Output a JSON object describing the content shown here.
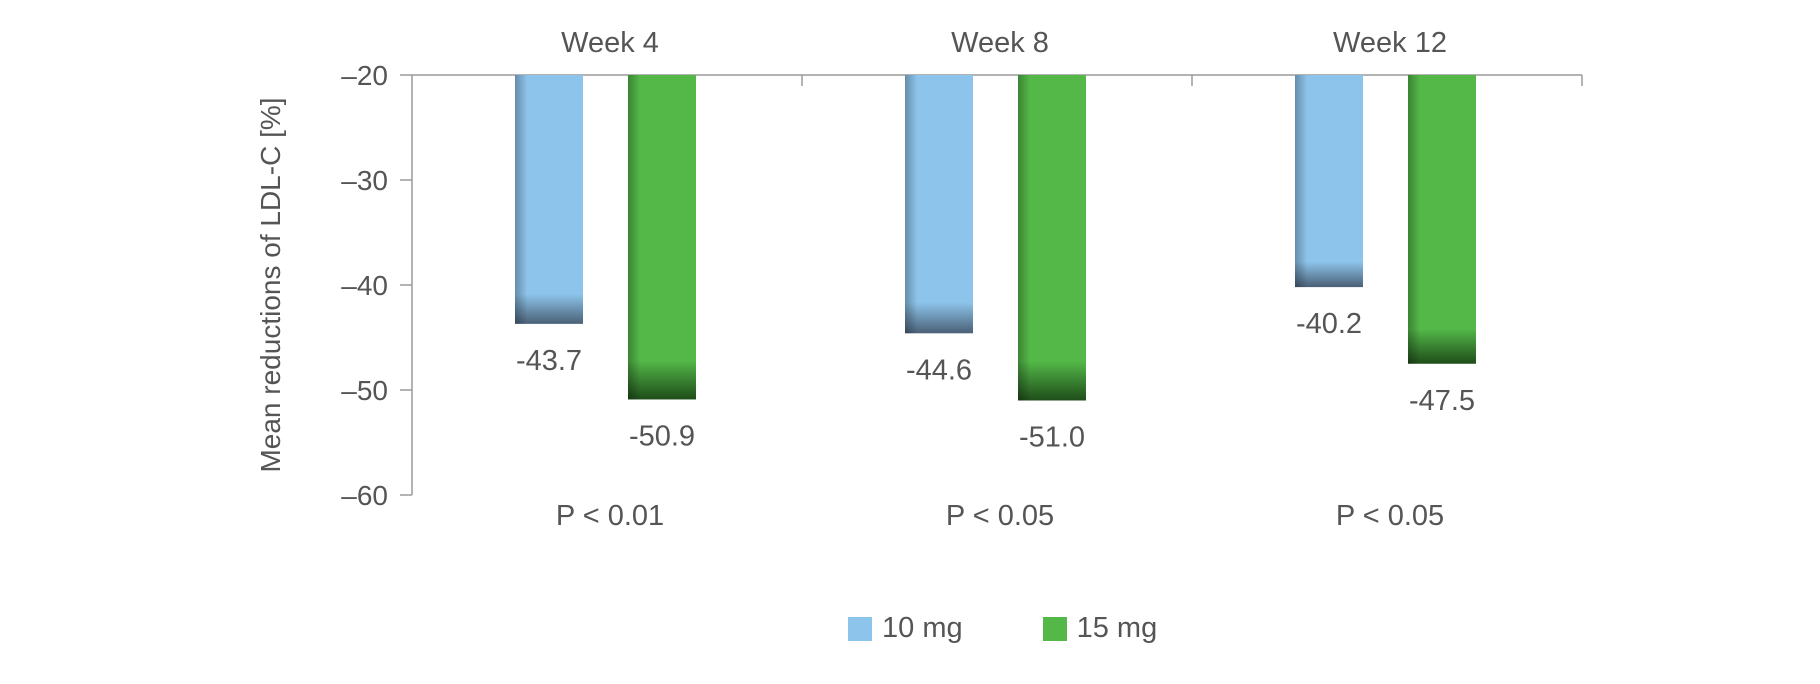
{
  "chart_data": {
    "type": "bar",
    "categories": [
      "Week 4",
      "Week 8",
      "Week 12"
    ],
    "series": [
      {
        "name": "10 mg",
        "values": [
          -43.7,
          -44.6,
          -40.2
        ],
        "labels": [
          "-43.7",
          "-44.6",
          "-40.2"
        ],
        "color": "#8dc4eb"
      },
      {
        "name": "15 mg",
        "values": [
          -50.9,
          -51.0,
          -47.5
        ],
        "labels": [
          "-50.9",
          "-51.0",
          "-47.5"
        ],
        "color": "#53b848"
      }
    ],
    "p_values": [
      "P < 0.01",
      "P < 0.05",
      "P < 0.05"
    ],
    "ylabel": "Mean reductions of LDL-C [%]",
    "ylim": [
      -60,
      -20
    ],
    "yticks": [
      -20,
      -30,
      -40,
      -50,
      -60
    ],
    "ytick_labels": [
      "–20",
      "–30",
      "–40",
      "–50",
      "–60"
    ],
    "legend_position": "bottom",
    "grid": false
  }
}
